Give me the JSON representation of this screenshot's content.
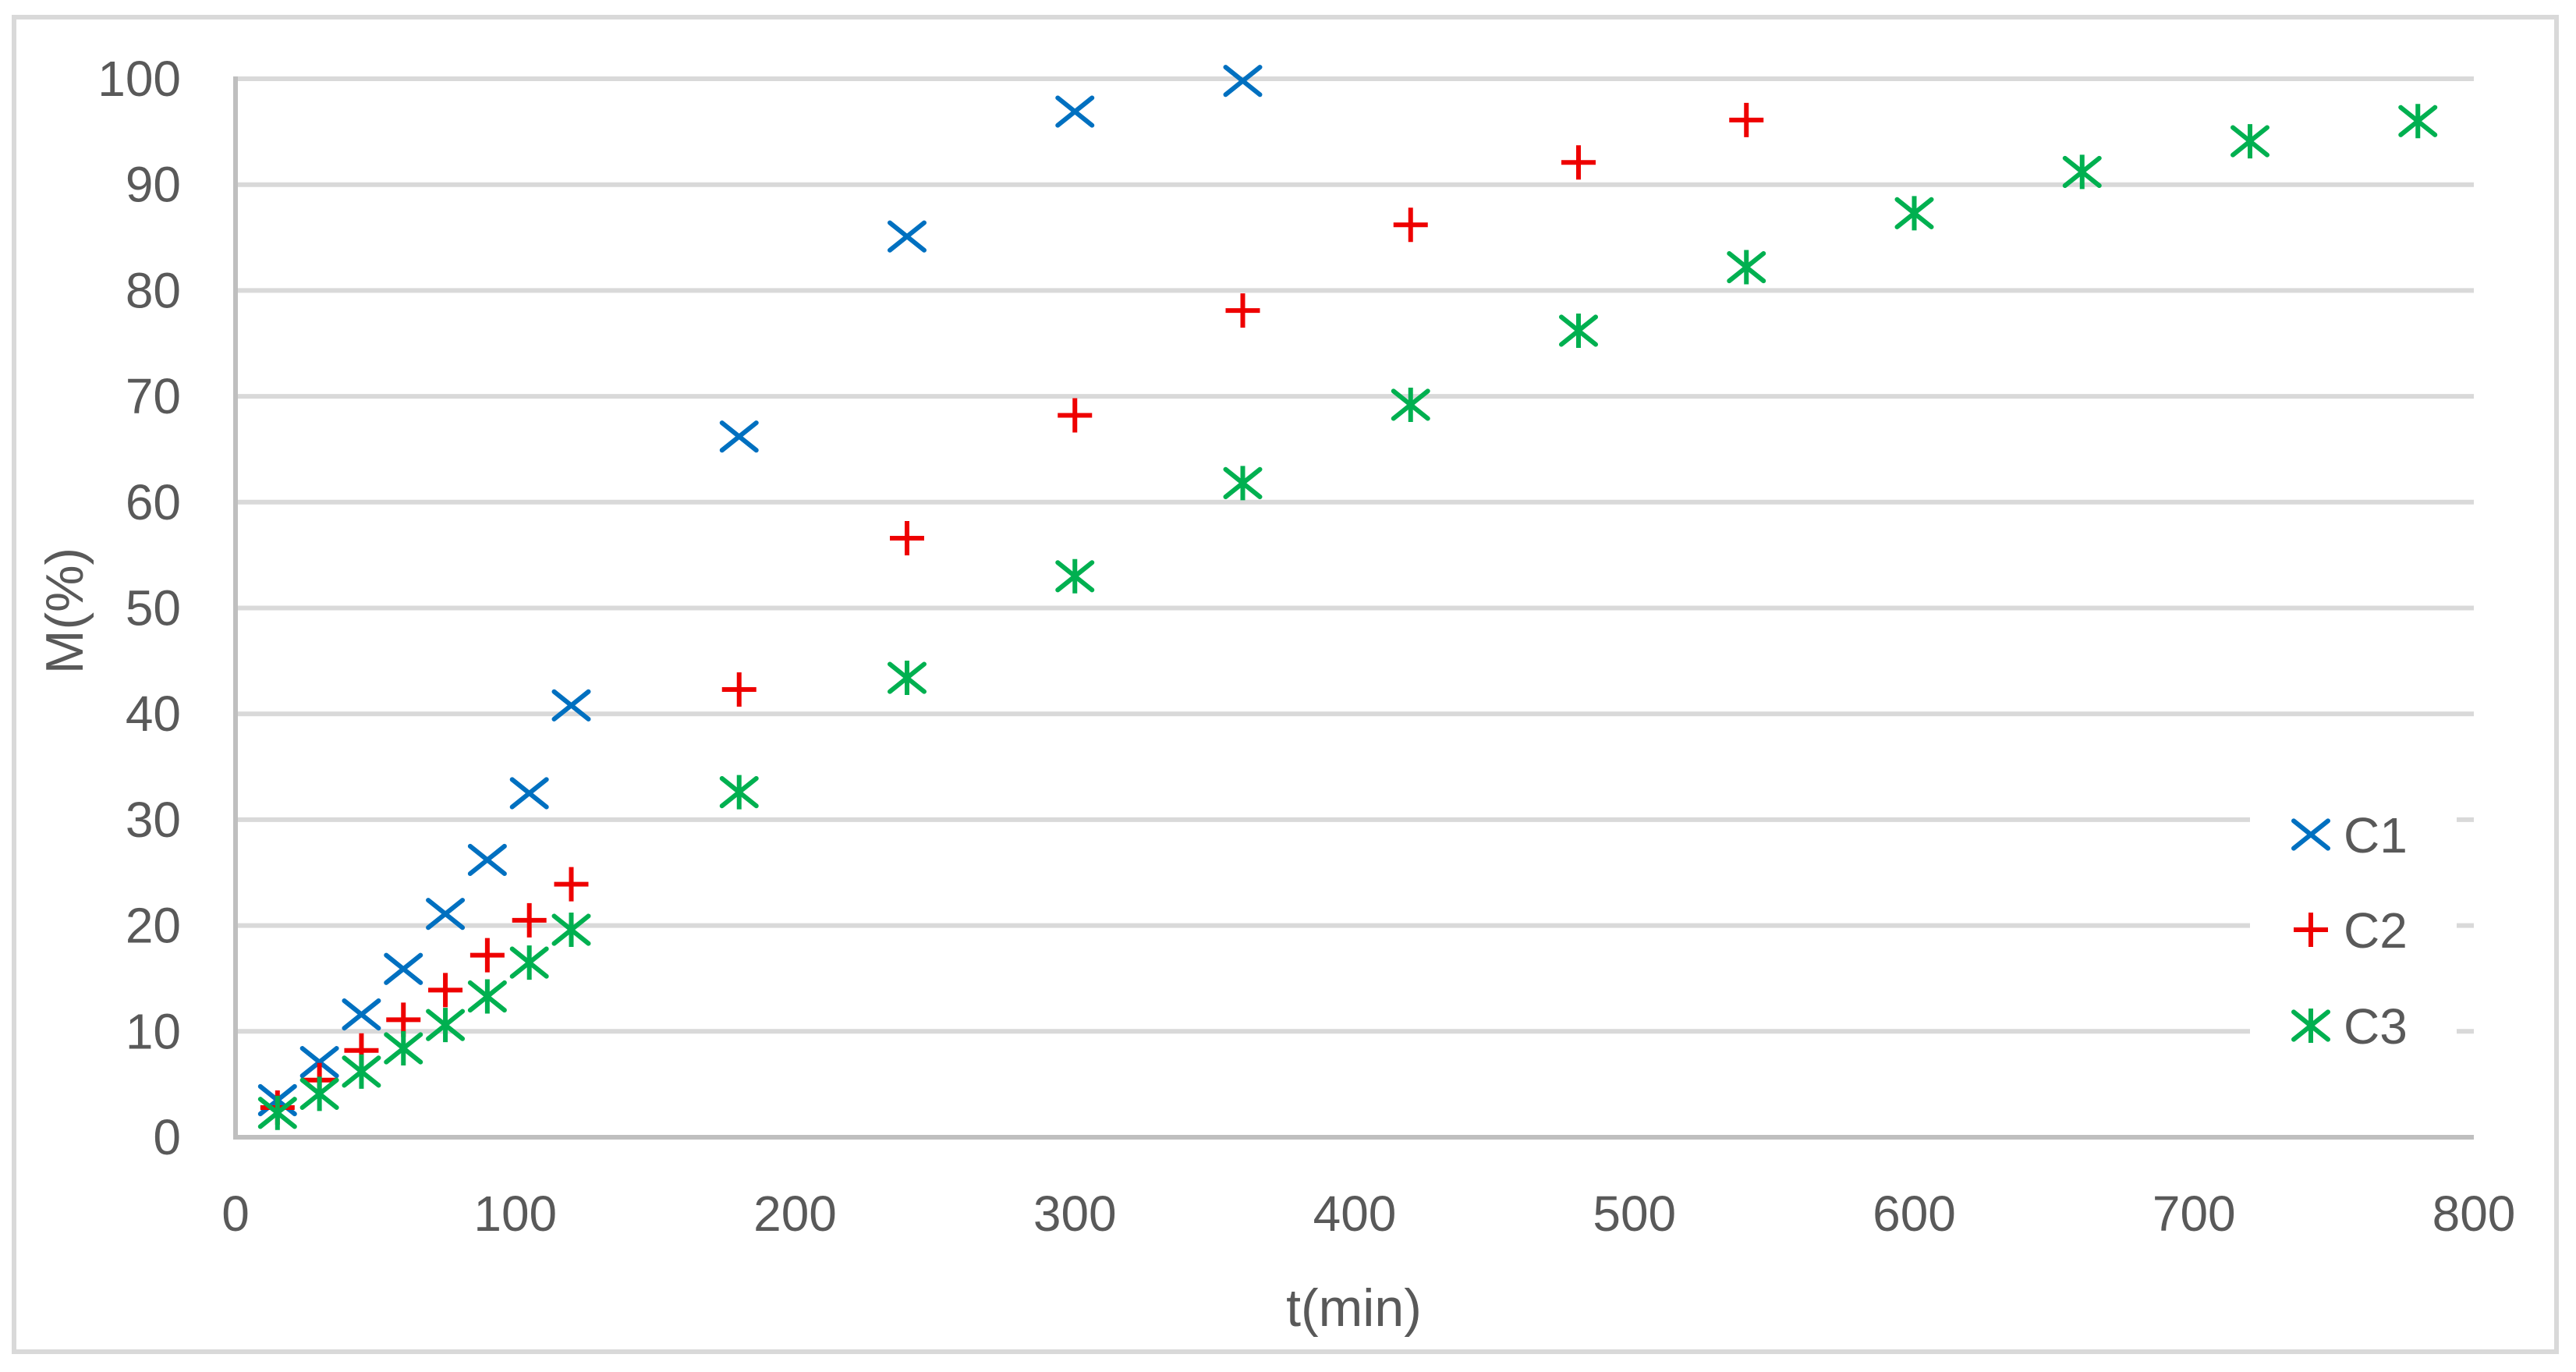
{
  "chart_data": {
    "type": "scatter",
    "title": "",
    "xlabel": "t(min)",
    "ylabel": "M(%)",
    "xlim": [
      0,
      800
    ],
    "ylim": [
      0,
      100
    ],
    "x_ticks": [
      0,
      100,
      200,
      300,
      400,
      500,
      600,
      700,
      800
    ],
    "y_ticks": [
      0,
      10,
      20,
      30,
      40,
      50,
      60,
      70,
      80,
      90,
      100
    ],
    "grid": {
      "horizontal": true,
      "vertical": false
    },
    "legend_position": "right-bottom-inside",
    "series": [
      {
        "name": "C1",
        "marker": "x",
        "color": "#0070C0",
        "x": [
          15,
          30,
          45,
          60,
          75,
          90,
          105,
          120,
          180,
          240,
          300,
          360
        ],
        "y": [
          3.5,
          7.1,
          11.6,
          15.9,
          21.1,
          26.2,
          32.5,
          40.8,
          66.2,
          85.1,
          96.9,
          99.8
        ]
      },
      {
        "name": "C2",
        "marker": "+",
        "color": "#EE0000",
        "x": [
          15,
          30,
          45,
          60,
          75,
          90,
          105,
          120,
          180,
          240,
          300,
          360,
          420,
          480,
          540
        ],
        "y": [
          2.8,
          5.4,
          8.2,
          11.1,
          13.9,
          17.2,
          20.5,
          23.9,
          42.3,
          56.6,
          68.2,
          78.1,
          86.2,
          92.1,
          96.1
        ]
      },
      {
        "name": "C3",
        "marker": "asterisk",
        "color": "#00B050",
        "x": [
          15,
          30,
          45,
          60,
          75,
          90,
          105,
          120,
          180,
          240,
          300,
          360,
          420,
          480,
          540,
          600,
          660,
          720,
          780
        ],
        "y": [
          2.3,
          4.1,
          6.2,
          8.4,
          10.6,
          13.3,
          16.5,
          19.6,
          32.6,
          43.4,
          53.0,
          61.8,
          69.2,
          76.2,
          82.2,
          87.3,
          91.2,
          94.1,
          96.0
        ]
      }
    ]
  },
  "legend": {
    "items": [
      {
        "label": "C1",
        "marker": "x-icon",
        "color": "#0070C0"
      },
      {
        "label": "C2",
        "marker": "plus-icon",
        "color": "#EE0000"
      },
      {
        "label": "C3",
        "marker": "asterisk-icon",
        "color": "#00B050"
      }
    ]
  },
  "axes": {
    "x_title": "t(min)",
    "y_title": "M(%)",
    "x_tick_labels": [
      "0",
      "100",
      "200",
      "300",
      "400",
      "500",
      "600",
      "700",
      "800"
    ],
    "y_tick_labels": [
      "0",
      "10",
      "20",
      "30",
      "40",
      "50",
      "60",
      "70",
      "80",
      "90",
      "100"
    ]
  }
}
